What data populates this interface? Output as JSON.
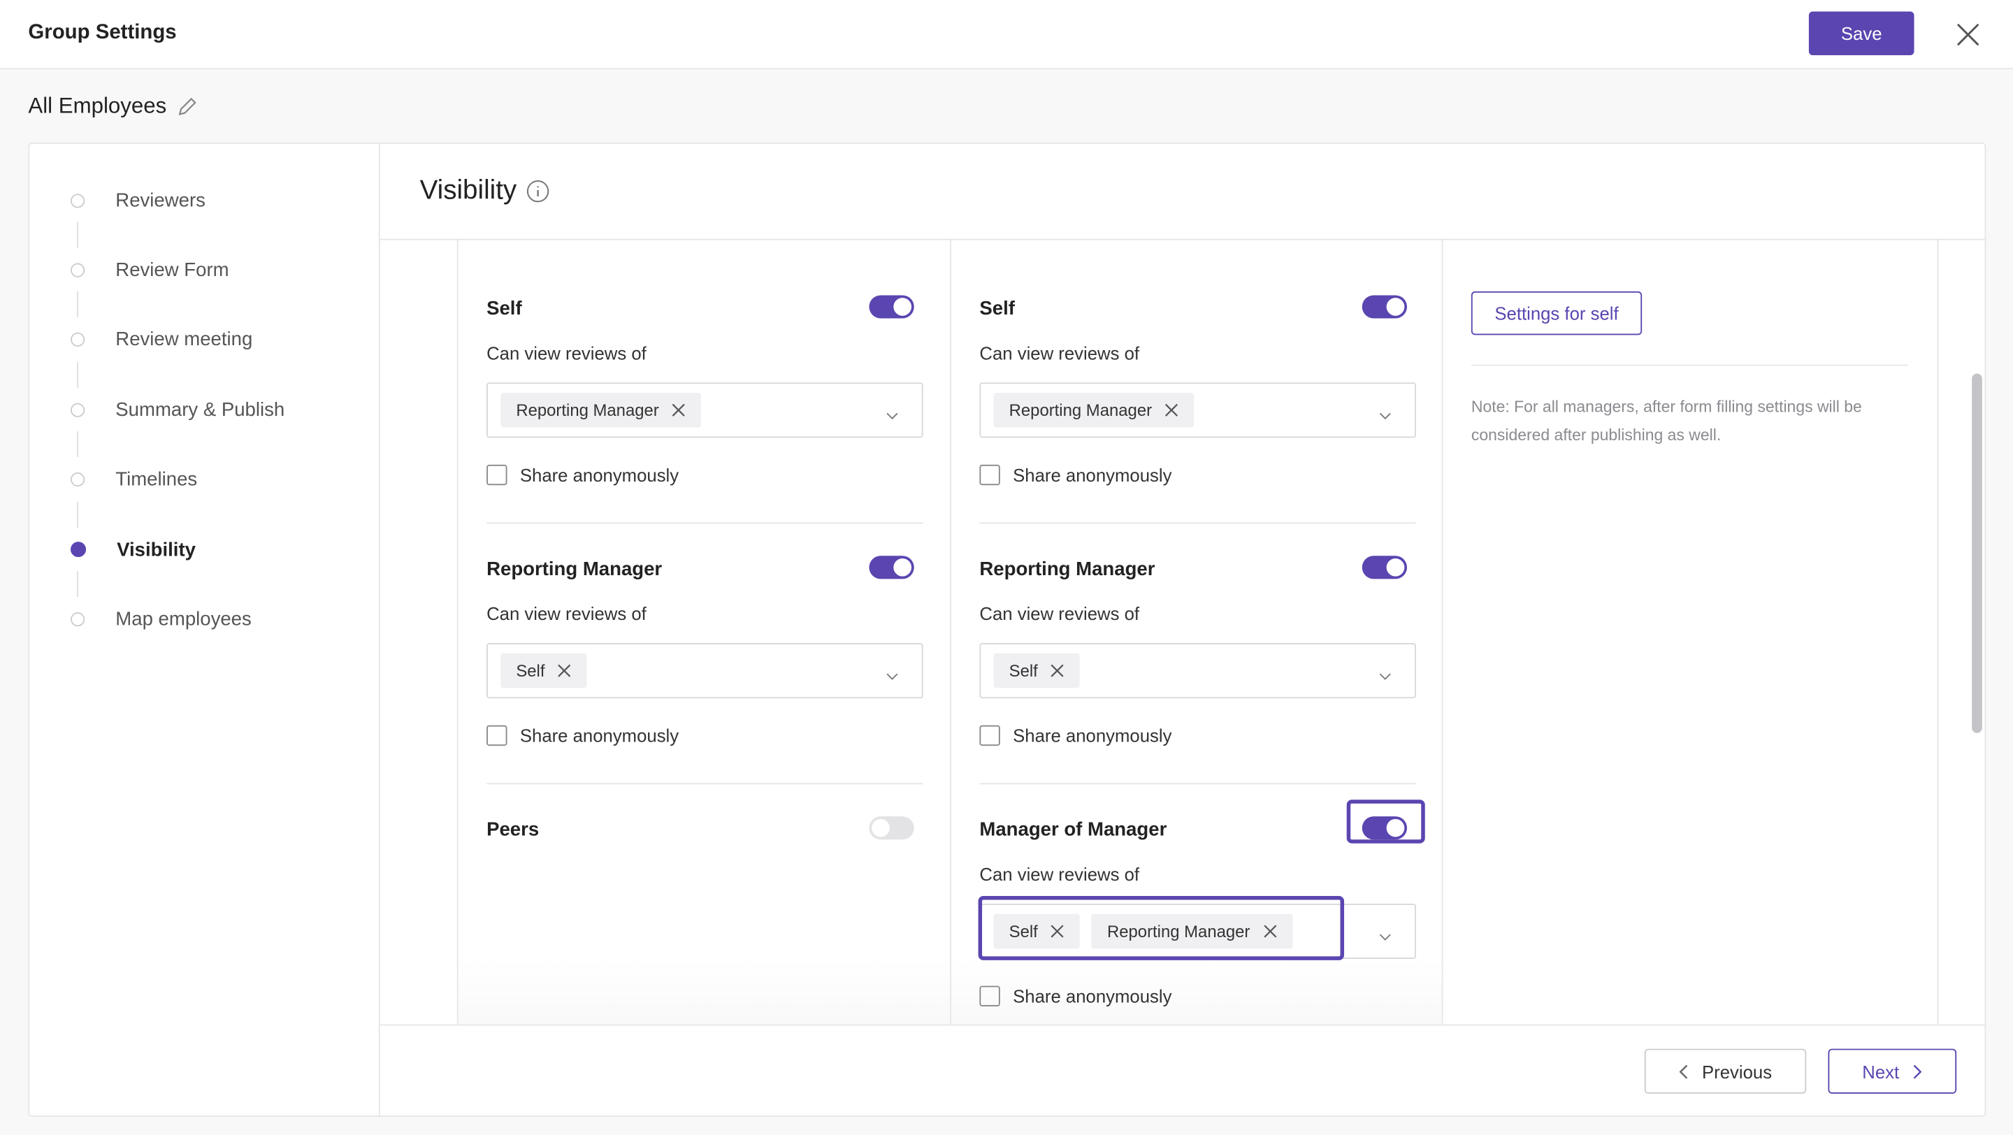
{
  "header": {
    "title": "Group Settings",
    "save": "Save"
  },
  "group_name": "All Employees",
  "steps": [
    "Reviewers",
    "Review Form",
    "Review meeting",
    "Summary & Publish",
    "Timelines",
    "Visibility",
    "Map employees"
  ],
  "active_step": 5,
  "section_title": "Visibility",
  "columns": [
    {
      "roles": [
        {
          "name": "Self",
          "enabled": true,
          "label": "Can view reviews of",
          "tags": [
            "Reporting Manager"
          ],
          "checkbox": "Share anonymously"
        },
        {
          "name": "Reporting Manager",
          "enabled": true,
          "label": "Can view reviews of",
          "tags": [
            "Self"
          ],
          "checkbox": "Share anonymously"
        },
        {
          "name": "Peers",
          "enabled": false
        }
      ]
    },
    {
      "roles": [
        {
          "name": "Self",
          "enabled": true,
          "label": "Can view reviews of",
          "tags": [
            "Reporting Manager"
          ],
          "checkbox": "Share anonymously"
        },
        {
          "name": "Reporting Manager",
          "enabled": true,
          "label": "Can view reviews of",
          "tags": [
            "Self"
          ],
          "checkbox": "Share anonymously"
        },
        {
          "name": "Manager of Manager",
          "enabled": true,
          "highlighted": true,
          "label": "Can view reviews of",
          "tags": [
            "Self",
            "Reporting Manager"
          ],
          "checkbox": "Share anonymously"
        }
      ]
    }
  ],
  "side_panel": {
    "button": "Settings for self",
    "note": "Note: For all managers, after form filling settings will be considered after publishing as well."
  },
  "footer": {
    "previous": "Previous",
    "next": "Next"
  }
}
